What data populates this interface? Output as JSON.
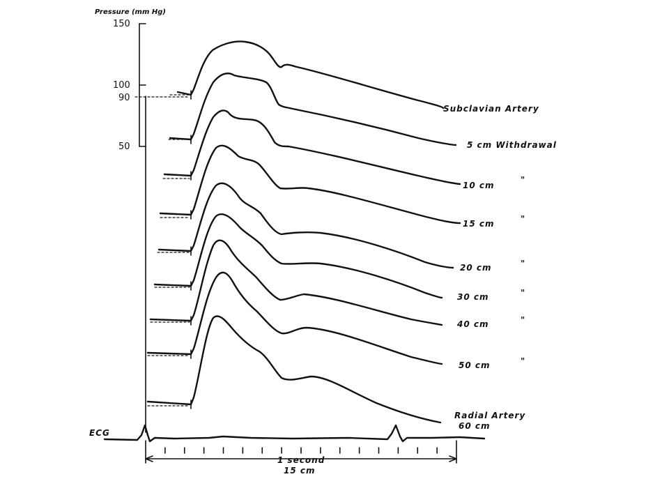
{
  "chart_data": {
    "type": "line",
    "ylabel": "Pressure (mm Hg)",
    "y_ticks": [
      "150",
      "100",
      "90",
      "50"
    ],
    "ylim": [
      50,
      150
    ],
    "time_axis": {
      "label_line1": "1 second",
      "label_line2": "15 cm"
    },
    "ecg_label": "ECG",
    "series": [
      {
        "label": "Subclavian Artery",
        "ditto": ""
      },
      {
        "label": "5 cm Withdrawal",
        "ditto": ""
      },
      {
        "label": "10 cm",
        "ditto": "\""
      },
      {
        "label": "15 cm",
        "ditto": "\""
      },
      {
        "label": "20 cm",
        "ditto": "\""
      },
      {
        "label": "30 cm",
        "ditto": "\""
      },
      {
        "label": "40 cm",
        "ditto": "\""
      },
      {
        "label": "50 cm",
        "ditto": "\""
      },
      {
        "label": "Radial Artery",
        "label2": "60 cm",
        "ditto": ""
      }
    ]
  }
}
